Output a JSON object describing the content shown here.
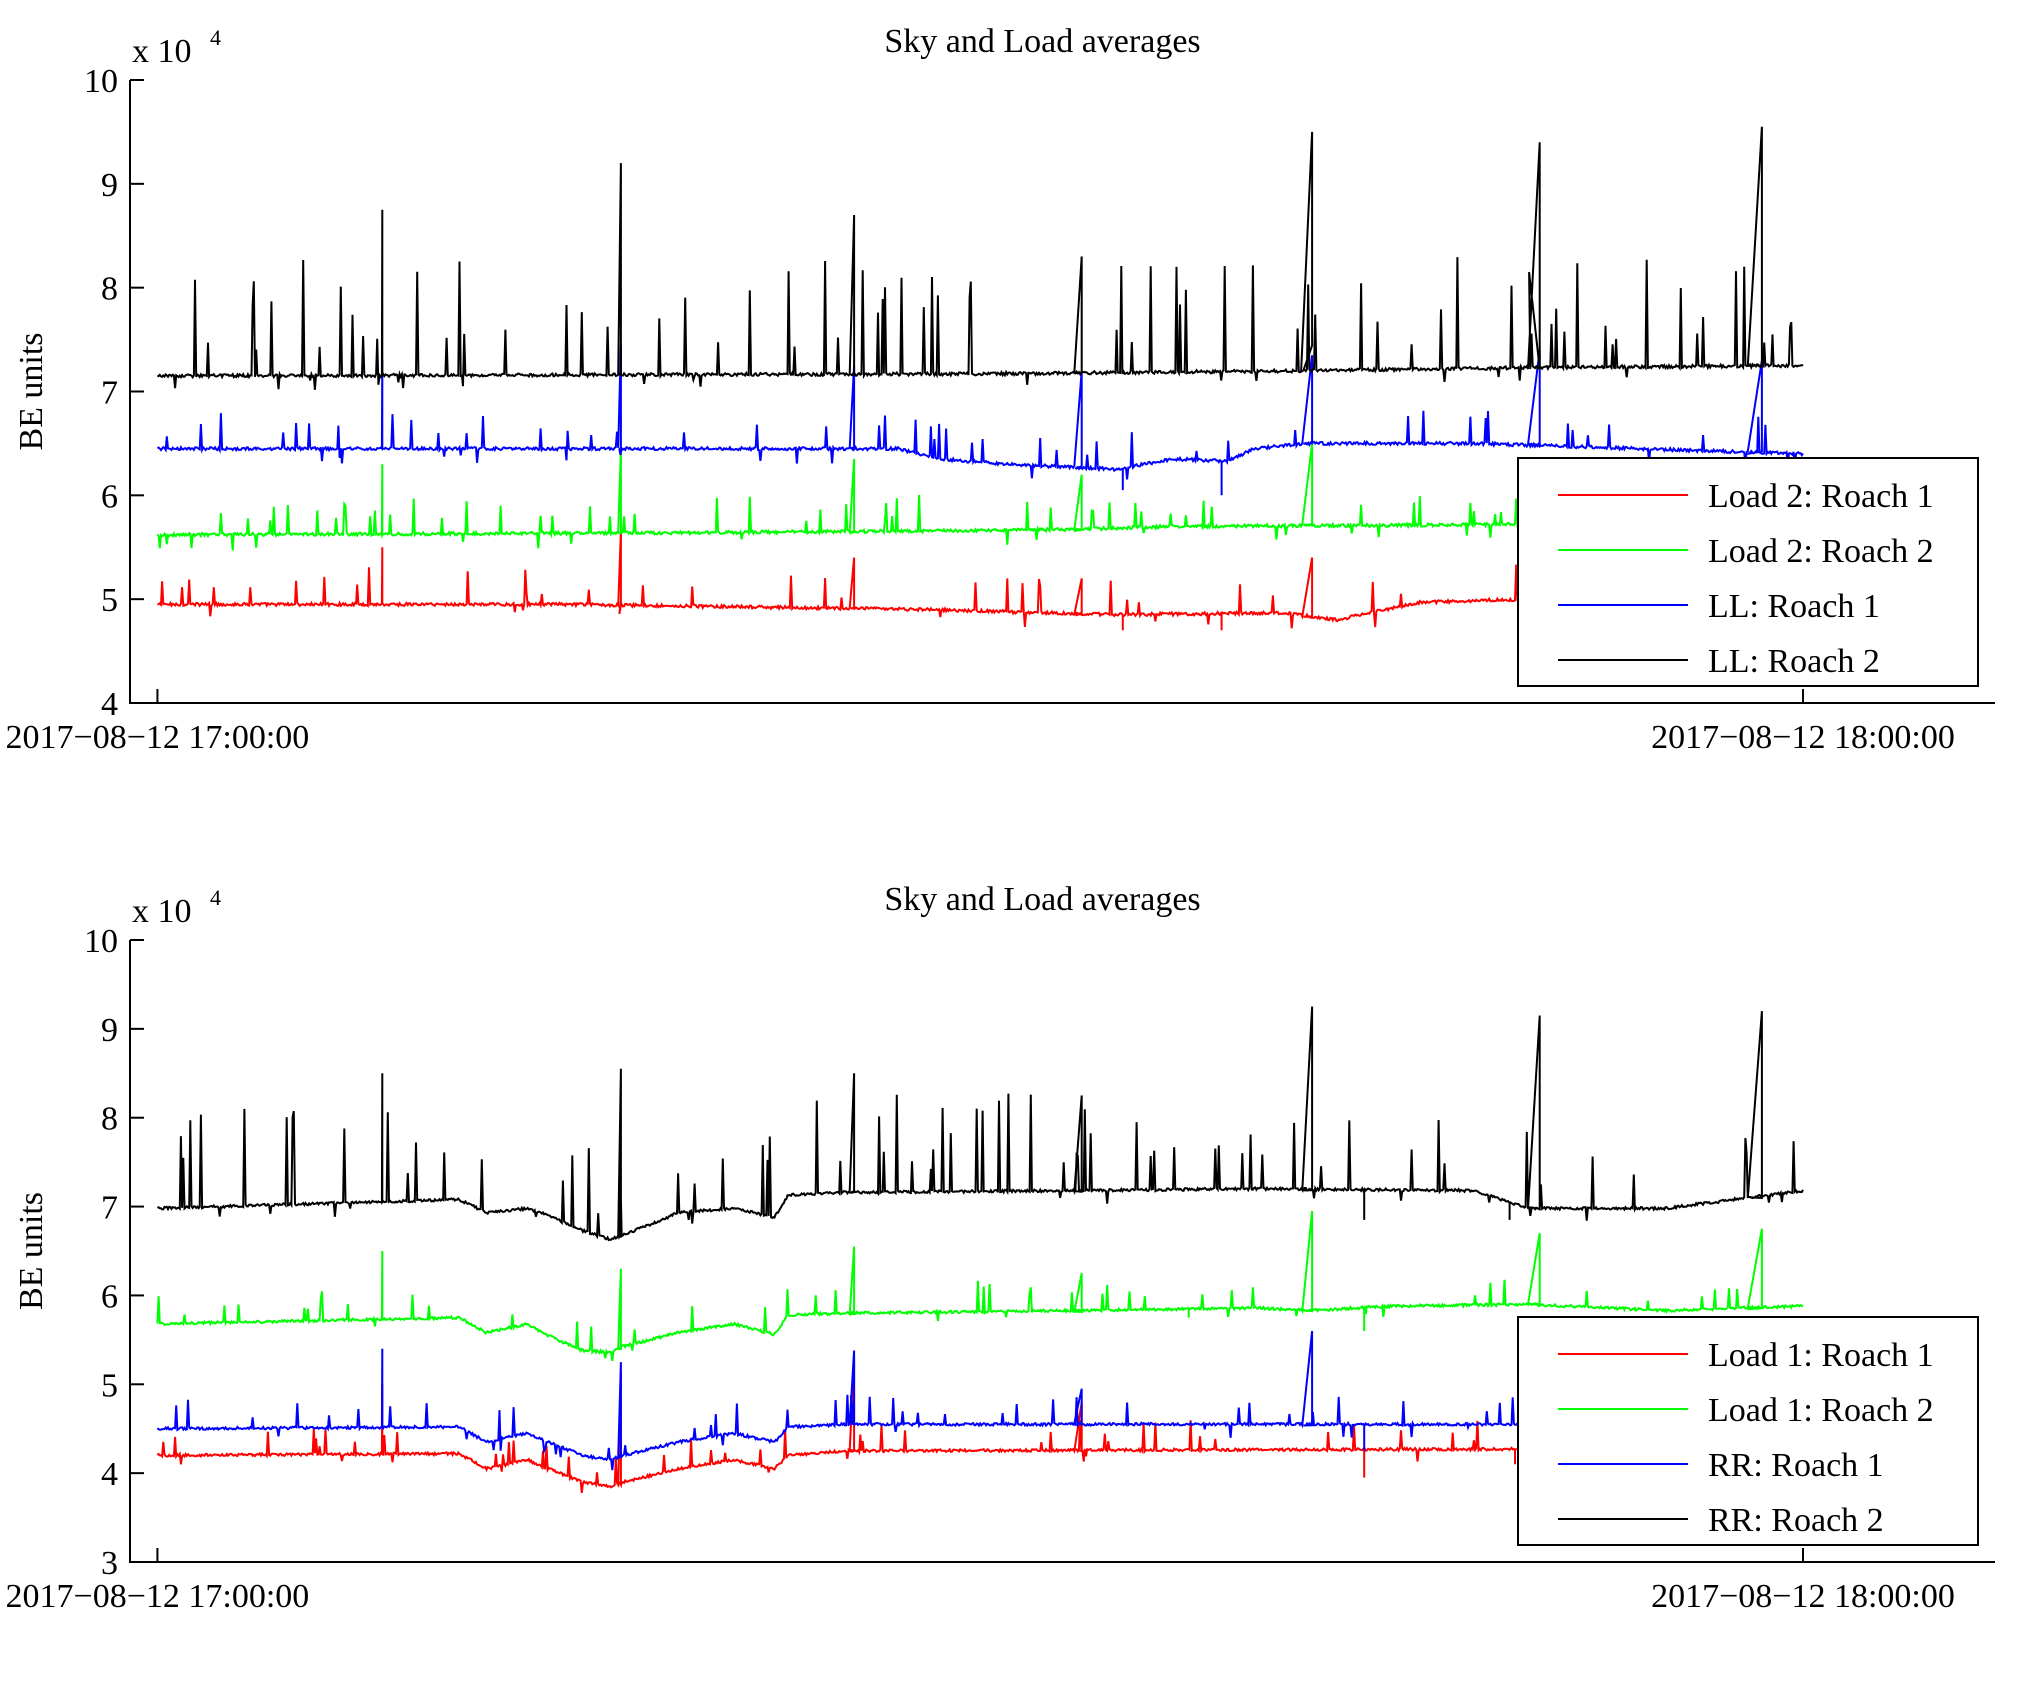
{
  "chart_data": [
    {
      "type": "line",
      "title": "Sky and Load averages",
      "ylabel": "BE units",
      "xlabel": "",
      "y_multiplier_label": "x 10",
      "y_multiplier_exponent": "4",
      "ylim": [
        4,
        10
      ],
      "yticks": [
        "4",
        "5",
        "6",
        "7",
        "8",
        "9",
        "10"
      ],
      "xlim": [
        "2017-08-12 16:59:00",
        "2017-08-12 18:07:00"
      ],
      "xticks": [
        {
          "value": "2017-08-12 17:00:00",
          "label": "2017−08−12 17:00:00"
        },
        {
          "value": "2017-08-12 18:00:00",
          "label": "2017−08−12 18:00:00"
        }
      ],
      "legend_position": "bottom-right",
      "series": [
        {
          "name": "Load 2: Roach 1",
          "color": "#ff0000",
          "baseline": 4.95,
          "shape": [
            [
              0,
              0
            ],
            [
              15,
              0
            ],
            [
              28,
              -0.05
            ],
            [
              35,
              -0.1
            ],
            [
              41,
              -0.08
            ],
            [
              43,
              -0.15
            ],
            [
              46,
              0.02
            ],
            [
              50,
              0.05
            ],
            [
              55,
              0.06
            ],
            [
              60,
              0.08
            ]
          ],
          "spikes": [
            [
              8.2,
              5.5
            ],
            [
              16.9,
              5.65
            ],
            [
              25.4,
              5.4
            ],
            [
              33.7,
              5.2
            ],
            [
              42.1,
              5.4
            ]
          ],
          "dips": [
            [
              35.2,
              4.7
            ],
            [
              38.8,
              4.7
            ]
          ]
        },
        {
          "name": "Load 2: Roach 2",
          "color": "#00ff00",
          "baseline": 5.62,
          "shape": [
            [
              0,
              0
            ],
            [
              20,
              0.02
            ],
            [
              33,
              0.05
            ],
            [
              37,
              0.08
            ],
            [
              50,
              0.1
            ],
            [
              60,
              0.12
            ]
          ],
          "spikes": [
            [
              8.2,
              6.3
            ],
            [
              16.9,
              6.45
            ],
            [
              25.4,
              6.35
            ],
            [
              33.7,
              6.2
            ],
            [
              42.1,
              6.5
            ]
          ],
          "dips": []
        },
        {
          "name": "LL: Roach 1",
          "color": "#0000ff",
          "baseline": 6.45,
          "shape": [
            [
              0,
              0
            ],
            [
              27,
              0
            ],
            [
              28.5,
              -0.1
            ],
            [
              31,
              -0.15
            ],
            [
              35,
              -0.2
            ],
            [
              37,
              -0.1
            ],
            [
              39,
              -0.12
            ],
            [
              40,
              0
            ],
            [
              42,
              0.05
            ],
            [
              48,
              0.05
            ],
            [
              60,
              -0.05
            ]
          ],
          "spikes": [
            [
              8.2,
              7.3
            ],
            [
              16.9,
              7.45
            ],
            [
              25.4,
              7.25
            ],
            [
              33.7,
              7.2
            ],
            [
              42.1,
              7.35
            ],
            [
              50.4,
              7.4
            ],
            [
              58.5,
              7.3
            ]
          ],
          "dips": [
            [
              35.2,
              6.05
            ],
            [
              38.8,
              6.0
            ]
          ]
        },
        {
          "name": "LL: Roach 2",
          "color": "#000000",
          "baseline": 7.15,
          "shape": [
            [
              0,
              0
            ],
            [
              30,
              0.02
            ],
            [
              42,
              0.05
            ],
            [
              50,
              0.08
            ],
            [
              60,
              0.1
            ]
          ],
          "spikes": [
            [
              8.2,
              8.75
            ],
            [
              16.9,
              9.2
            ],
            [
              25.4,
              8.7
            ],
            [
              33.7,
              8.3
            ],
            [
              42.1,
              9.5
            ],
            [
              50.4,
              9.4
            ],
            [
              58.5,
              9.55
            ]
          ],
          "dips": []
        }
      ]
    },
    {
      "type": "line",
      "title": "Sky and Load averages",
      "ylabel": "BE units",
      "xlabel": "",
      "y_multiplier_label": "x 10",
      "y_multiplier_exponent": "4",
      "ylim": [
        3,
        10
      ],
      "yticks": [
        "3",
        "4",
        "5",
        "6",
        "7",
        "8",
        "9",
        "10"
      ],
      "xlim": [
        "2017-08-12 16:59:00",
        "2017-08-12 18:07:00"
      ],
      "xticks": [
        {
          "value": "2017-08-12 17:00:00",
          "label": "2017−08−12 17:00:00"
        },
        {
          "value": "2017-08-12 18:00:00",
          "label": "2017−08−12 18:00:00"
        }
      ],
      "legend_position": "bottom-right",
      "series": [
        {
          "name": "Load 1: Roach 1",
          "color": "#ff0000",
          "baseline": 4.2,
          "shape": [
            [
              0,
              0
            ],
            [
              11,
              0.02
            ],
            [
              12,
              -0.15
            ],
            [
              13.5,
              -0.05
            ],
            [
              14,
              -0.12
            ],
            [
              15.5,
              -0.3
            ],
            [
              16.5,
              -0.35
            ],
            [
              17,
              -0.3
            ],
            [
              19,
              -0.15
            ],
            [
              21,
              -0.05
            ],
            [
              22.5,
              -0.15
            ],
            [
              23,
              0
            ],
            [
              25,
              0.05
            ],
            [
              60,
              0.08
            ]
          ],
          "spikes": [
            [
              8.2,
              5.0
            ],
            [
              16.9,
              5.15
            ],
            [
              25.4,
              5.3
            ],
            [
              33.7,
              4.8
            ]
          ],
          "dips": [
            [
              44,
              3.95
            ],
            [
              49.5,
              4.1
            ]
          ]
        },
        {
          "name": "Load 1: Roach 2",
          "color": "#00ff00",
          "baseline": 5.68,
          "shape": [
            [
              0,
              0
            ],
            [
              11,
              0.07
            ],
            [
              12,
              -0.1
            ],
            [
              13.5,
              0
            ],
            [
              14,
              -0.1
            ],
            [
              15.5,
              -0.3
            ],
            [
              16.5,
              -0.32
            ],
            [
              17,
              -0.25
            ],
            [
              19,
              -0.1
            ],
            [
              21,
              0
            ],
            [
              22.5,
              -0.12
            ],
            [
              23,
              0.1
            ],
            [
              25,
              0.12
            ],
            [
              33.7,
              0.15
            ],
            [
              40,
              0.18
            ],
            [
              42,
              0.15
            ],
            [
              45,
              0.2
            ],
            [
              50,
              0.22
            ],
            [
              55,
              0.15
            ],
            [
              60,
              0.2
            ]
          ],
          "spikes": [
            [
              8.2,
              6.5
            ],
            [
              16.9,
              6.3
            ],
            [
              25.4,
              6.55
            ],
            [
              33.7,
              6.25
            ],
            [
              42.1,
              6.95
            ],
            [
              50.4,
              6.7
            ],
            [
              58.5,
              6.75
            ]
          ],
          "dips": [
            [
              44,
              5.6
            ],
            [
              37.6,
              5.75
            ]
          ]
        },
        {
          "name": "RR: Roach 1",
          "color": "#0000ff",
          "baseline": 4.5,
          "shape": [
            [
              0,
              0
            ],
            [
              11,
              0.02
            ],
            [
              12,
              -0.15
            ],
            [
              13.5,
              -0.05
            ],
            [
              14,
              -0.12
            ],
            [
              15.5,
              -0.3
            ],
            [
              16.5,
              -0.35
            ],
            [
              17,
              -0.3
            ],
            [
              19,
              -0.15
            ],
            [
              21,
              -0.05
            ],
            [
              22.5,
              -0.15
            ],
            [
              23,
              0.02
            ],
            [
              25,
              0.05
            ],
            [
              60,
              0.05
            ]
          ],
          "spikes": [
            [
              8.2,
              5.4
            ],
            [
              16.9,
              5.25
            ],
            [
              25.4,
              5.38
            ],
            [
              33.7,
              4.95
            ],
            [
              42.1,
              5.6
            ]
          ],
          "dips": [
            [
              44,
              4.25
            ]
          ]
        },
        {
          "name": "RR: Roach 2",
          "color": "#000000",
          "baseline": 6.98,
          "shape": [
            [
              0,
              0
            ],
            [
              11,
              0.1
            ],
            [
              12,
              -0.05
            ],
            [
              13.5,
              0
            ],
            [
              14,
              -0.05
            ],
            [
              15.5,
              -0.25
            ],
            [
              16.5,
              -0.35
            ],
            [
              17,
              -0.3
            ],
            [
              19,
              -0.05
            ],
            [
              21,
              0
            ],
            [
              22.5,
              -0.1
            ],
            [
              23,
              0.15
            ],
            [
              25,
              0.18
            ],
            [
              33.7,
              0.2
            ],
            [
              40,
              0.22
            ],
            [
              48,
              0.2
            ],
            [
              50,
              0
            ],
            [
              55,
              0
            ],
            [
              60,
              0.2
            ]
          ],
          "spikes": [
            [
              8.2,
              8.5
            ],
            [
              16.9,
              8.55
            ],
            [
              25.4,
              8.5
            ],
            [
              33.7,
              8.25
            ],
            [
              42.1,
              9.25
            ],
            [
              50.4,
              9.15
            ],
            [
              58.5,
              9.2
            ]
          ],
          "dips": [
            [
              44,
              6.85
            ],
            [
              49.3,
              6.85
            ]
          ]
        }
      ]
    }
  ]
}
